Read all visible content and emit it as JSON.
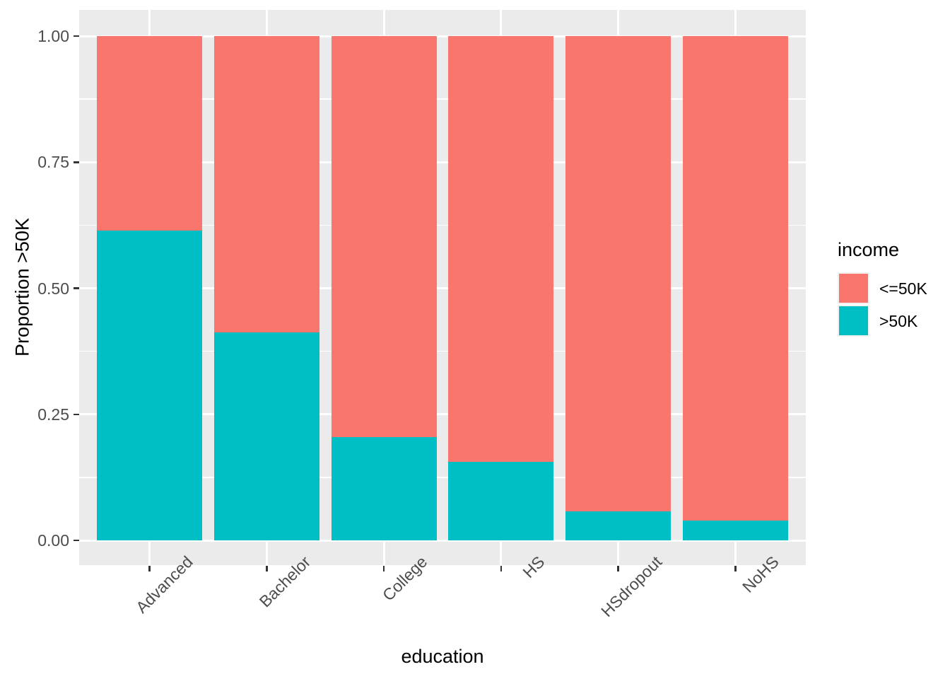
{
  "chart_data": {
    "type": "bar",
    "stacked": true,
    "normalized": true,
    "xlabel": "education",
    "ylabel": "Proportion >50K",
    "categories": [
      "Advanced",
      "Bachelor",
      "College",
      "HS",
      "HSdropout",
      "NoHS"
    ],
    "series": [
      {
        "name": "<=50K",
        "color": "#F8766D",
        "values": [
          0.385,
          0.587,
          0.795,
          0.844,
          0.943,
          0.961
        ]
      },
      {
        "name": ">50K",
        "color": "#00BFC4",
        "values": [
          0.615,
          0.413,
          0.205,
          0.156,
          0.057,
          0.039
        ]
      }
    ],
    "ylim": [
      0,
      1
    ],
    "yticks": [
      {
        "value": 0.0,
        "label": "0.00"
      },
      {
        "value": 0.25,
        "label": "0.25"
      },
      {
        "value": 0.5,
        "label": "0.50"
      },
      {
        "value": 0.75,
        "label": "0.75"
      },
      {
        "value": 1.0,
        "label": "1.00"
      }
    ],
    "minor_gridlines": [
      0.125,
      0.375,
      0.625,
      0.875
    ],
    "grid": true,
    "legend": {
      "title": "income",
      "position": "right",
      "entries": [
        {
          "label": "<=50K",
          "color": "#F8766D"
        },
        {
          "label": ">50K",
          "color": "#00BFC4"
        }
      ]
    },
    "style": {
      "panel_background": "#EBEBEB",
      "gridline_color": "#FFFFFF",
      "tick_mark_color": "#333333",
      "tick_label_color": "#4D4D4D",
      "axis_title_color": "#000000",
      "figure_background": "#FFFFFF"
    }
  }
}
